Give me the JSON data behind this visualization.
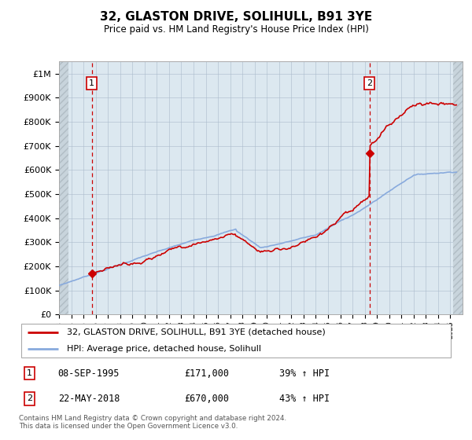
{
  "title": "32, GLASTON DRIVE, SOLIHULL, B91 3YE",
  "subtitle": "Price paid vs. HM Land Registry's House Price Index (HPI)",
  "legend_line1": "32, GLASTON DRIVE, SOLIHULL, B91 3YE (detached house)",
  "legend_line2": "HPI: Average price, detached house, Solihull",
  "annotation1": {
    "num": "1",
    "date": "08-SEP-1995",
    "price": "£171,000",
    "hpi": "39% ↑ HPI"
  },
  "annotation2": {
    "num": "2",
    "date": "22-MAY-2018",
    "price": "£670,000",
    "hpi": "43% ↑ HPI"
  },
  "footer": "Contains HM Land Registry data © Crown copyright and database right 2024.\nThis data is licensed under the Open Government Licence v3.0.",
  "price_color": "#cc0000",
  "hpi_color": "#88aadd",
  "vline_color": "#cc0000",
  "annotation_box_color": "#cc0000",
  "grid_color": "#aabbcc",
  "plot_bg_color": "#dce8f0",
  "fig_bg_color": "#ffffff",
  "ylim": [
    0,
    1050000
  ],
  "yticks": [
    0,
    100000,
    200000,
    300000,
    400000,
    500000,
    600000,
    700000,
    800000,
    900000,
    1000000
  ],
  "sale1_year": 1995.69,
  "sale1_price": 171000,
  "sale2_year": 2018.39,
  "sale2_price": 670000,
  "xmin": 1993,
  "xmax": 2026
}
